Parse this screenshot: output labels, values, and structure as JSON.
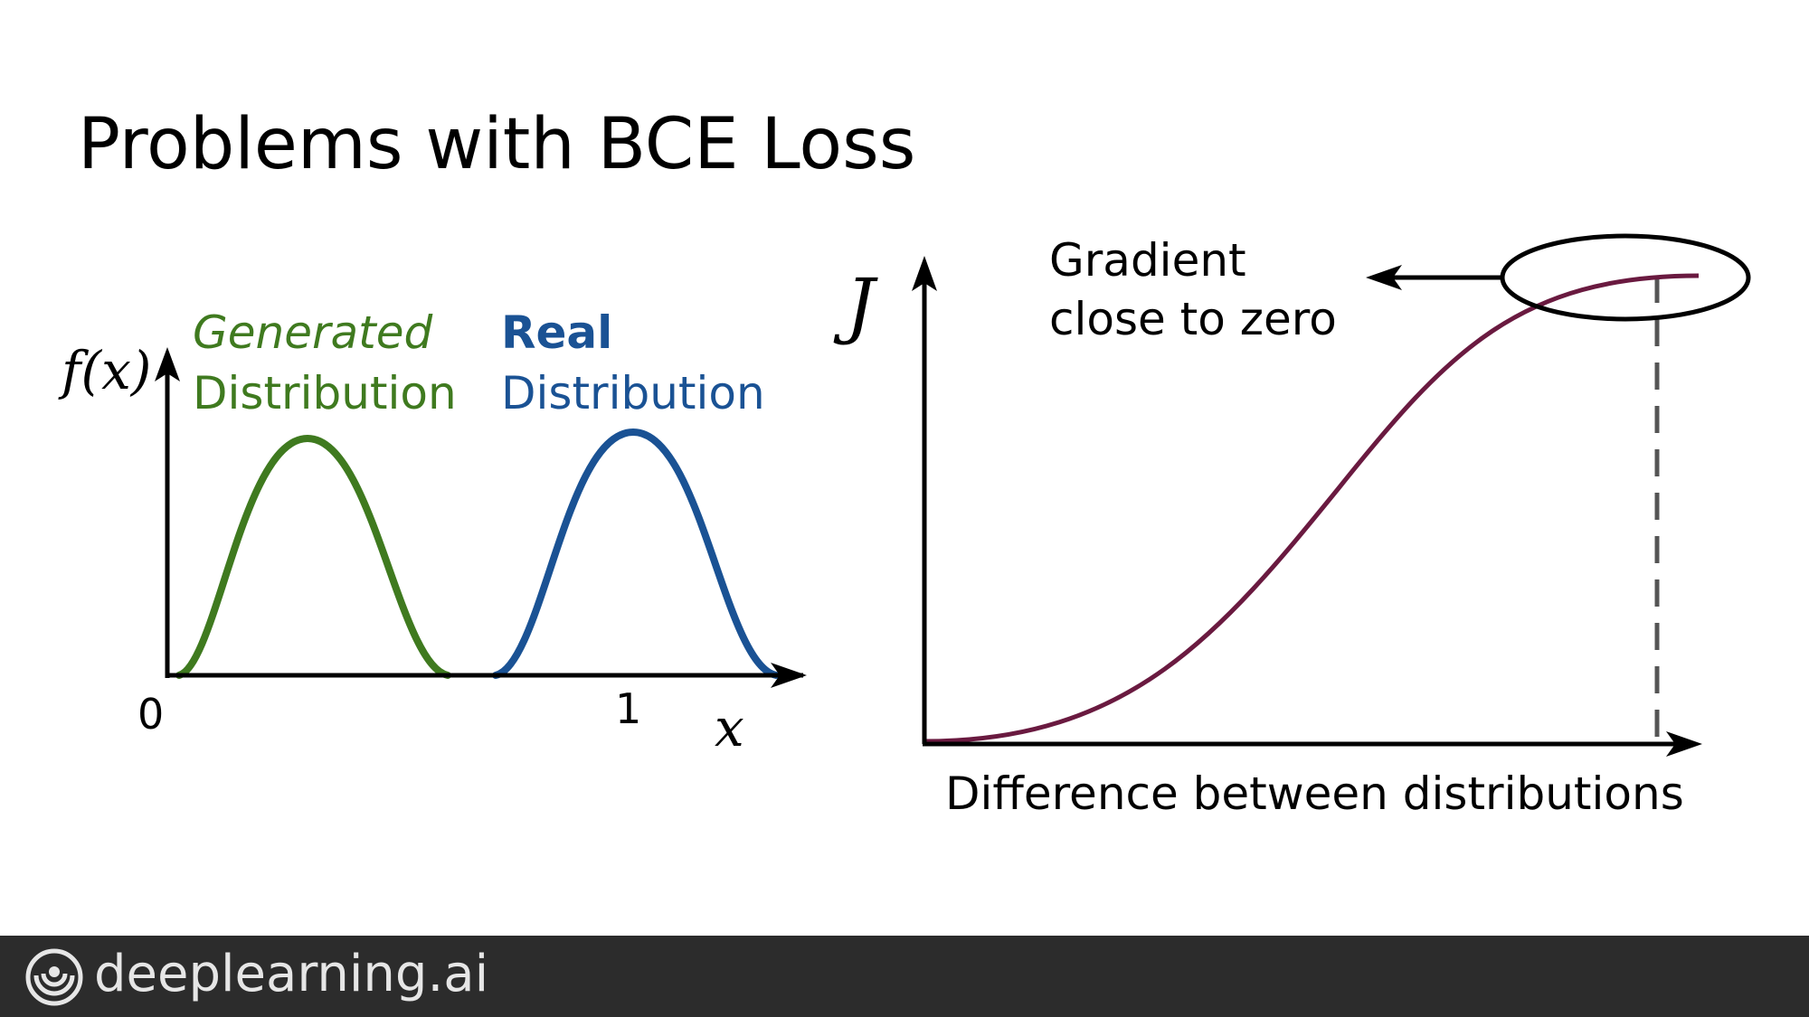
{
  "slide": {
    "title": "Problems with BCE Loss"
  },
  "left_plot": {
    "y_axis_label": "f(x)",
    "x_axis_label": "x",
    "tick_zero": "0",
    "tick_one": "1",
    "generated_line1": "Generated",
    "generated_line2": "Distribution",
    "real_line1": "Real",
    "real_line2": "Distribution",
    "colors": {
      "generated": "#3f7a1f",
      "real": "#1a5294"
    }
  },
  "right_plot": {
    "y_axis_label": "J",
    "x_axis_label": "Difference between distributions",
    "annotation_line1": "Gradient",
    "annotation_line2": "close to zero",
    "colors": {
      "curve": "#6a1a40",
      "dashed": "#555555"
    }
  },
  "footer": {
    "brand": "deeplearning.ai"
  }
}
